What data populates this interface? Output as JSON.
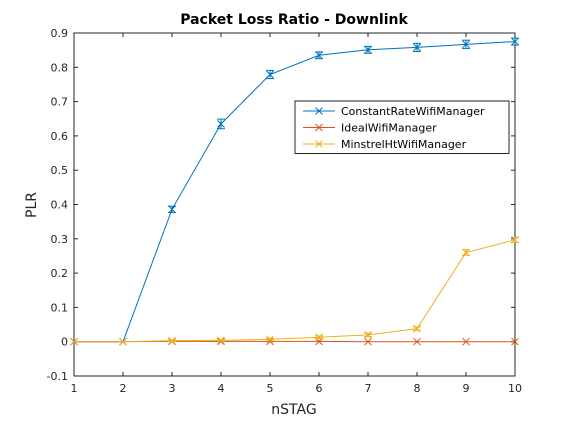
{
  "chart_data": {
    "type": "line",
    "title": "Packet Loss Ratio - Downlink",
    "xlabel": "nSTAG",
    "ylabel": "PLR",
    "xlim": [
      1,
      10
    ],
    "ylim": [
      -0.1,
      0.9
    ],
    "xticks": [
      "1",
      "2",
      "3",
      "4",
      "5",
      "6",
      "7",
      "8",
      "9",
      "10"
    ],
    "yticks": [
      "-0.1",
      "0",
      "0.1",
      "0.2",
      "0.3",
      "0.4",
      "0.5",
      "0.6",
      "0.7",
      "0.8",
      "0.9"
    ],
    "grid": false,
    "legend_position": "upper-right",
    "series": [
      {
        "name": "ConstantRateWifiManager",
        "color": "#0072BD",
        "x": [
          1,
          2,
          3,
          4,
          5,
          6,
          7,
          8,
          9,
          10
        ],
        "y": [
          0,
          0,
          0.386,
          0.635,
          0.779,
          0.835,
          0.851,
          0.858,
          0.867,
          0.875
        ],
        "err": [
          0,
          0,
          0.009,
          0.014,
          0.012,
          0.01,
          0.01,
          0.012,
          0.012,
          0.01
        ]
      },
      {
        "name": "IdealWifiManager",
        "color": "#D95319",
        "x": [
          1,
          2,
          3,
          4,
          5,
          6,
          7,
          8,
          9,
          10
        ],
        "y": [
          0,
          0,
          0.001,
          0.001,
          0.001,
          0.001,
          0,
          0,
          0,
          0
        ],
        "err": [
          0,
          0,
          0,
          0,
          0,
          0,
          0,
          0,
          0,
          0
        ]
      },
      {
        "name": "MinstrelHtWifiManager",
        "color": "#EDB120",
        "x": [
          1,
          2,
          3,
          4,
          5,
          6,
          7,
          8,
          9,
          10
        ],
        "y": [
          0,
          0,
          0.003,
          0.004,
          0.007,
          0.013,
          0.02,
          0.038,
          0.26,
          0.297
        ],
        "err": [
          0,
          0,
          0.002,
          0.002,
          0.003,
          0.004,
          0.005,
          0.005,
          0.008,
          0.007
        ]
      }
    ]
  }
}
